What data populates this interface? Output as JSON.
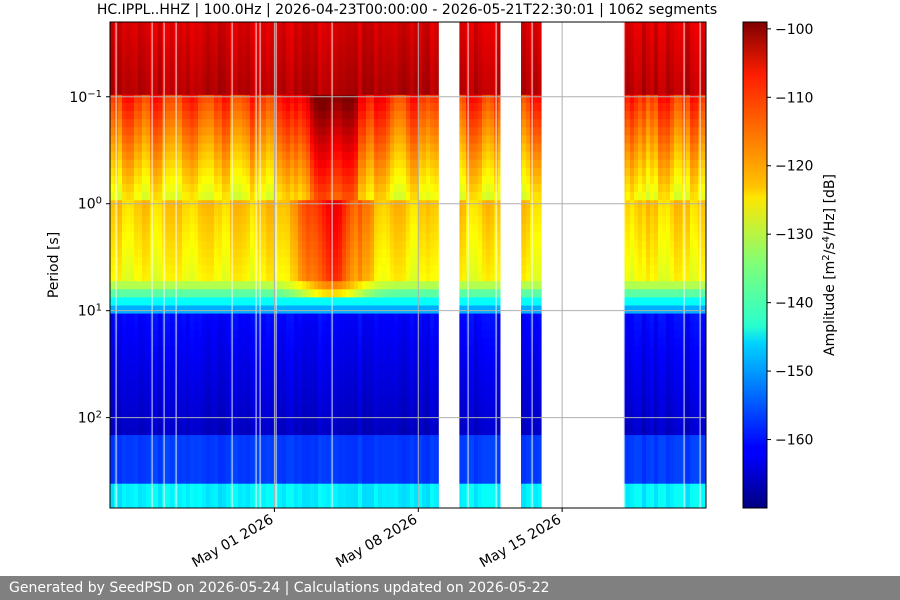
{
  "chart_data": {
    "type": "heatmap",
    "title": "HC.IPPL..HHZ | 100.0Hz | 2026-04-23T00:00:00 - 2026-05-21T22:30:01 | 1062 segments",
    "xlabel": "",
    "ylabel": "Period [s]",
    "colorbar_label_html": "Amplitude [m<tspan baseline-shift=\"super\" font-size=\"10\">2</tspan>/s<tspan baseline-shift=\"super\" font-size=\"10\">4</tspan>/Hz] [dB]",
    "x_ticks": [
      {
        "label": "May 01 2026",
        "day": 8
      },
      {
        "label": "May 08 2026",
        "day": 15
      },
      {
        "label": "May 15 2026",
        "day": 22
      }
    ],
    "xlim_days": [
      0,
      29
    ],
    "y_scale": "log",
    "ylim_period_s": [
      0.02,
      700
    ],
    "y_ticks": [
      {
        "label_base": "10",
        "label_exp": "−1",
        "value": 0.1
      },
      {
        "label_base": "10",
        "label_exp": "0",
        "value": 1
      },
      {
        "label_base": "10",
        "label_exp": "1",
        "value": 10
      },
      {
        "label_base": "10",
        "label_exp": "2",
        "value": 100
      }
    ],
    "colorbar": {
      "range_db": [
        -170,
        -99
      ],
      "ticks": [
        "−100",
        "−110",
        "−120",
        "−130",
        "−140",
        "−150",
        "−160"
      ],
      "tick_values": [
        -100,
        -110,
        -120,
        -130,
        -140,
        -150,
        -160
      ],
      "colormap": "jet"
    },
    "data_gaps_days": [
      [
        16.0,
        17.0
      ],
      [
        19.0,
        20.0
      ],
      [
        21.0,
        25.0
      ]
    ],
    "grid": true
  },
  "footer": {
    "text": "Generated by SeedPSD on 2026-05-24 | Calculations updated on 2026-05-22"
  }
}
